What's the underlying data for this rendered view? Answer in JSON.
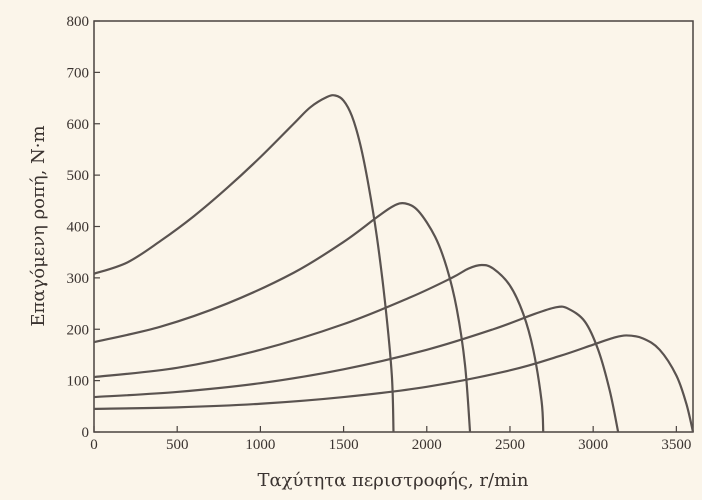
{
  "chart_data": {
    "type": "line",
    "xlabel": "Ταχύτητα περιστροφής, r/min",
    "ylabel": "Επαγόμενη ροπή, N·m",
    "xlim": [
      0,
      3600
    ],
    "ylim": [
      0,
      800
    ],
    "x_ticks": [
      "0",
      "500",
      "1000",
      "1500",
      "2000",
      "2500",
      "3000",
      "3500"
    ],
    "y_ticks": [
      "0",
      "100",
      "200",
      "300",
      "400",
      "500",
      "600",
      "700",
      "800"
    ],
    "grid": false,
    "legend": "none",
    "line_color": "#5a5350",
    "series": [
      {
        "points": [
          [
            0,
            308
          ],
          [
            200,
            330
          ],
          [
            400,
            372
          ],
          [
            600,
            420
          ],
          [
            800,
            475
          ],
          [
            1000,
            535
          ],
          [
            1200,
            600
          ],
          [
            1300,
            632
          ],
          [
            1400,
            652
          ],
          [
            1450,
            655
          ],
          [
            1500,
            645
          ],
          [
            1550,
            615
          ],
          [
            1600,
            560
          ],
          [
            1650,
            480
          ],
          [
            1700,
            380
          ],
          [
            1750,
            250
          ],
          [
            1790,
            110
          ],
          [
            1800,
            0
          ]
        ]
      },
      {
        "points": [
          [
            0,
            175
          ],
          [
            400,
            205
          ],
          [
            800,
            250
          ],
          [
            1200,
            310
          ],
          [
            1500,
            370
          ],
          [
            1700,
            418
          ],
          [
            1800,
            440
          ],
          [
            1870,
            445
          ],
          [
            1950,
            430
          ],
          [
            2050,
            380
          ],
          [
            2120,
            320
          ],
          [
            2180,
            240
          ],
          [
            2230,
            130
          ],
          [
            2260,
            0
          ]
        ]
      },
      {
        "points": [
          [
            0,
            107
          ],
          [
            500,
            125
          ],
          [
            1000,
            160
          ],
          [
            1500,
            210
          ],
          [
            1900,
            262
          ],
          [
            2150,
            300
          ],
          [
            2250,
            318
          ],
          [
            2330,
            325
          ],
          [
            2400,
            318
          ],
          [
            2500,
            285
          ],
          [
            2580,
            230
          ],
          [
            2640,
            160
          ],
          [
            2690,
            60
          ],
          [
            2700,
            0
          ]
        ]
      },
      {
        "points": [
          [
            0,
            68
          ],
          [
            500,
            78
          ],
          [
            1000,
            95
          ],
          [
            1500,
            122
          ],
          [
            2000,
            160
          ],
          [
            2400,
            200
          ],
          [
            2650,
            230
          ],
          [
            2780,
            243
          ],
          [
            2850,
            240
          ],
          [
            2950,
            215
          ],
          [
            3030,
            160
          ],
          [
            3100,
            80
          ],
          [
            3150,
            0
          ]
        ]
      },
      {
        "points": [
          [
            0,
            45
          ],
          [
            500,
            48
          ],
          [
            1000,
            55
          ],
          [
            1500,
            68
          ],
          [
            2000,
            88
          ],
          [
            2500,
            120
          ],
          [
            2800,
            148
          ],
          [
            3000,
            170
          ],
          [
            3120,
            183
          ],
          [
            3200,
            188
          ],
          [
            3300,
            182
          ],
          [
            3400,
            160
          ],
          [
            3500,
            110
          ],
          [
            3560,
            55
          ],
          [
            3600,
            0
          ]
        ]
      }
    ]
  }
}
